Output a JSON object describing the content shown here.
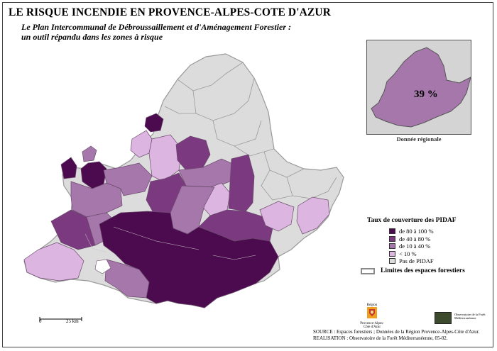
{
  "map": {
    "title": "LE RISQUE INCENDIE EN PROVENCE-ALPES-COTE D'AZUR",
    "subtitle_line1": "Le Plan Intercommunal de Débroussaillement et d'Aménagement Forestier :",
    "subtitle_line2": "un outil répandu dans les zones à risque",
    "inset_value": "39 %",
    "inset_caption": "Donnée régionale"
  },
  "legend": {
    "title": "Taux de couverture des PIDAF",
    "items": [
      {
        "label": "de 80 à 100 %",
        "color": "#4b0b4e"
      },
      {
        "label": "de 40 à 80 %",
        "color": "#7b3a7f"
      },
      {
        "label": "de 10 à 40 %",
        "color": "#a677ab"
      },
      {
        "label": "< 10 %",
        "color": "#dcb6e0"
      },
      {
        "label": "Pas de PIDAF",
        "color": "#dcdcdc"
      }
    ],
    "forest_label": "Limites des espaces forestiers"
  },
  "scale": {
    "zero": "0",
    "distance": "25 km"
  },
  "logos": {
    "region_top": "Région",
    "region_name": "Provence-Alpes-Côte d'Azur",
    "obs_name": "Observatoire de la Forêt Méditerranéenne"
  },
  "source": {
    "line1": "SOURCE : Espaces forestiers ; Données de la Région Provence-Alpes-Côte d'Azur.",
    "line2": "REALISATION : Observatoire de la Forêt Méditerranéenne, 05-02."
  }
}
